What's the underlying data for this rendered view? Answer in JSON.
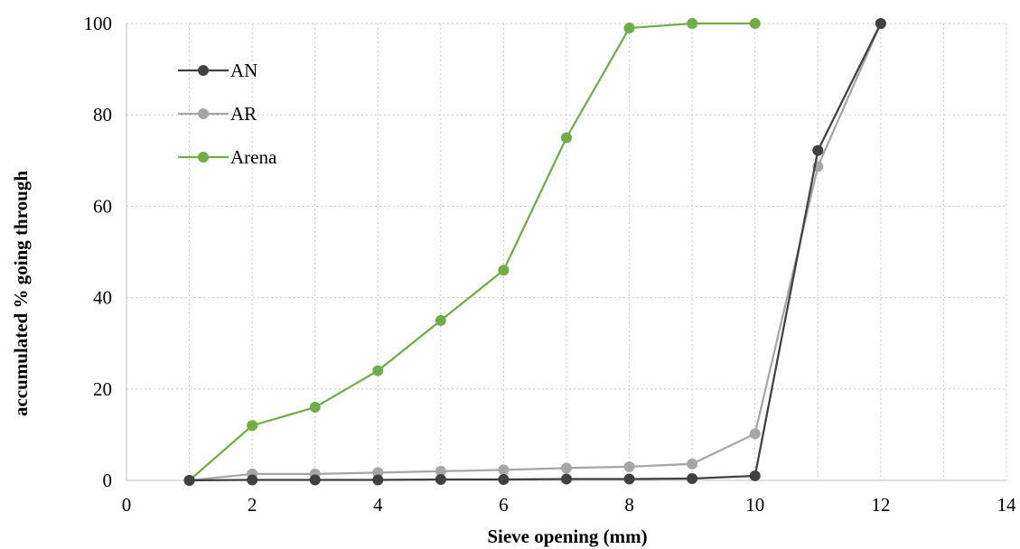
{
  "chart_data": {
    "type": "line",
    "xlabel": "Sieve opening (mm)",
    "ylabel": "accumulated % going through",
    "xlim": [
      0,
      14
    ],
    "ylim": [
      0,
      100
    ],
    "xticks": [
      0,
      2,
      4,
      6,
      8,
      10,
      12,
      14
    ],
    "yticks": [
      0,
      20,
      40,
      60,
      80,
      100
    ],
    "grid": true,
    "legend_position": "top-left",
    "series": [
      {
        "name": "AN",
        "color": "#404040",
        "x": [
          1,
          2,
          3,
          4,
          5,
          6,
          7,
          8,
          9,
          10,
          11,
          12
        ],
        "y": [
          0,
          0.1,
          0.1,
          0.1,
          0.2,
          0.2,
          0.3,
          0.3,
          0.4,
          1.0,
          72.2,
          100
        ]
      },
      {
        "name": "AR",
        "color": "#a6a6a6",
        "x": [
          1,
          2,
          3,
          4,
          5,
          6,
          7,
          8,
          9,
          10,
          11,
          12
        ],
        "y": [
          0,
          1.4,
          1.4,
          1.7,
          2.0,
          2.3,
          2.7,
          3.0,
          3.6,
          10.2,
          68.7,
          100
        ]
      },
      {
        "name": "Arena",
        "color": "#70ad47",
        "x": [
          1,
          2,
          3,
          4,
          5,
          6,
          7,
          8,
          9,
          10
        ],
        "y": [
          0,
          12,
          16,
          24,
          35,
          46,
          75,
          99,
          100,
          100
        ]
      }
    ]
  }
}
